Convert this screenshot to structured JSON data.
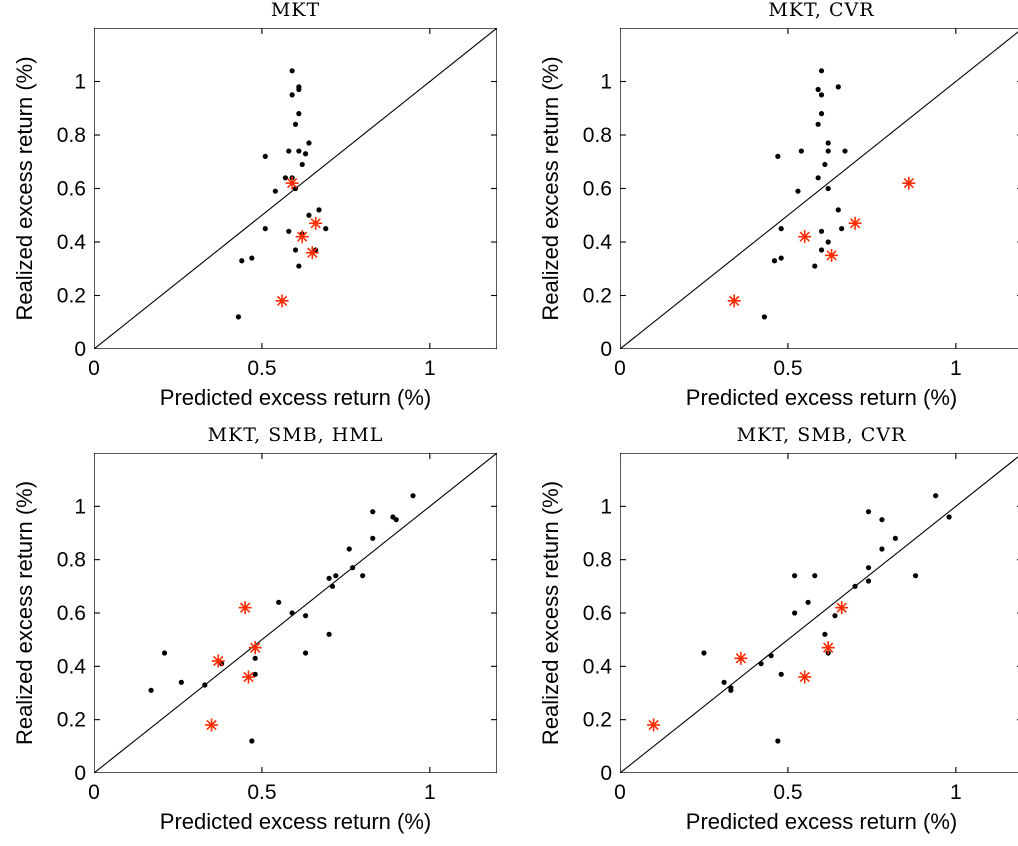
{
  "chart_data": [
    {
      "type": "scatter",
      "title": "MKT",
      "xlabel": "Predicted excess return (%)",
      "ylabel": "Realized excess return (%)",
      "xlim": [
        0,
        1.2
      ],
      "ylim": [
        0,
        1.2
      ],
      "x_ticks": [
        {
          "v": 0,
          "label": "0"
        },
        {
          "v": 0.5,
          "label": "0.5"
        },
        {
          "v": 1,
          "label": "1"
        }
      ],
      "y_ticks": [
        {
          "v": 0,
          "label": "0"
        },
        {
          "v": 0.2,
          "label": "0.2"
        },
        {
          "v": 0.4,
          "label": "0.4"
        },
        {
          "v": 0.6,
          "label": "0.6"
        },
        {
          "v": 0.8,
          "label": "0.8"
        },
        {
          "v": 1,
          "label": "1"
        }
      ],
      "reference_line": "45-degree",
      "series": [
        {
          "color": "#000000",
          "marker": "dot",
          "points": [
            [
              0.59,
              1.04
            ],
            [
              0.61,
              0.98
            ],
            [
              0.61,
              0.97
            ],
            [
              0.59,
              0.95
            ],
            [
              0.61,
              0.88
            ],
            [
              0.6,
              0.84
            ],
            [
              0.64,
              0.77
            ],
            [
              0.58,
              0.74
            ],
            [
              0.61,
              0.74
            ],
            [
              0.63,
              0.73
            ],
            [
              0.51,
              0.72
            ],
            [
              0.62,
              0.69
            ],
            [
              0.59,
              0.64
            ],
            [
              0.57,
              0.64
            ],
            [
              0.6,
              0.6
            ],
            [
              0.54,
              0.59
            ],
            [
              0.67,
              0.52
            ],
            [
              0.64,
              0.5
            ],
            [
              0.69,
              0.45
            ],
            [
              0.51,
              0.45
            ],
            [
              0.58,
              0.44
            ],
            [
              0.62,
              0.43
            ],
            [
              0.66,
              0.37
            ],
            [
              0.6,
              0.37
            ],
            [
              0.47,
              0.34
            ],
            [
              0.44,
              0.33
            ],
            [
              0.61,
              0.31
            ],
            [
              0.43,
              0.12
            ]
          ]
        },
        {
          "color": "#ff2a00",
          "marker": "asterisk",
          "points": [
            [
              0.59,
              0.62
            ],
            [
              0.66,
              0.47
            ],
            [
              0.62,
              0.42
            ],
            [
              0.65,
              0.36
            ],
            [
              0.56,
              0.18
            ]
          ]
        }
      ]
    },
    {
      "type": "scatter",
      "title": "MKT, CVR",
      "xlabel": "Predicted excess return (%)",
      "ylabel": "Realized excess return (%)",
      "xlim": [
        0,
        1.2
      ],
      "ylim": [
        0,
        1.2
      ],
      "x_ticks": [
        {
          "v": 0,
          "label": "0"
        },
        {
          "v": 0.5,
          "label": "0.5"
        },
        {
          "v": 1,
          "label": "1"
        }
      ],
      "y_ticks": [
        {
          "v": 0,
          "label": "0"
        },
        {
          "v": 0.2,
          "label": "0.2"
        },
        {
          "v": 0.4,
          "label": "0.4"
        },
        {
          "v": 0.6,
          "label": "0.6"
        },
        {
          "v": 0.8,
          "label": "0.8"
        },
        {
          "v": 1,
          "label": "1"
        }
      ],
      "reference_line": "45-degree",
      "series": [
        {
          "color": "#000000",
          "marker": "dot",
          "points": [
            [
              0.6,
              1.04
            ],
            [
              0.59,
              0.97
            ],
            [
              0.6,
              0.95
            ],
            [
              0.65,
              0.98
            ],
            [
              0.6,
              0.88
            ],
            [
              0.59,
              0.84
            ],
            [
              0.62,
              0.77
            ],
            [
              0.62,
              0.74
            ],
            [
              0.67,
              0.74
            ],
            [
              0.54,
              0.74
            ],
            [
              0.47,
              0.72
            ],
            [
              0.61,
              0.69
            ],
            [
              0.59,
              0.64
            ],
            [
              0.62,
              0.6
            ],
            [
              0.53,
              0.59
            ],
            [
              0.65,
              0.52
            ],
            [
              0.66,
              0.45
            ],
            [
              0.48,
              0.45
            ],
            [
              0.6,
              0.44
            ],
            [
              0.62,
              0.4
            ],
            [
              0.6,
              0.37
            ],
            [
              0.48,
              0.34
            ],
            [
              0.46,
              0.33
            ],
            [
              0.58,
              0.31
            ],
            [
              0.43,
              0.12
            ]
          ]
        },
        {
          "color": "#ff2a00",
          "marker": "asterisk",
          "points": [
            [
              0.86,
              0.62
            ],
            [
              0.7,
              0.47
            ],
            [
              0.55,
              0.42
            ],
            [
              0.63,
              0.35
            ],
            [
              0.34,
              0.18
            ]
          ]
        }
      ]
    },
    {
      "type": "scatter",
      "title": "MKT, SMB, HML",
      "xlabel": "Predicted excess return (%)",
      "ylabel": "Realized excess return (%)",
      "xlim": [
        0,
        1.2
      ],
      "ylim": [
        0,
        1.2
      ],
      "x_ticks": [
        {
          "v": 0,
          "label": "0"
        },
        {
          "v": 0.5,
          "label": "0.5"
        },
        {
          "v": 1,
          "label": "1"
        }
      ],
      "y_ticks": [
        {
          "v": 0,
          "label": "0"
        },
        {
          "v": 0.2,
          "label": "0.2"
        },
        {
          "v": 0.4,
          "label": "0.4"
        },
        {
          "v": 0.6,
          "label": "0.6"
        },
        {
          "v": 0.8,
          "label": "0.8"
        },
        {
          "v": 1,
          "label": "1"
        }
      ],
      "reference_line": "45-degree",
      "series": [
        {
          "color": "#000000",
          "marker": "dot",
          "points": [
            [
              0.95,
              1.04
            ],
            [
              0.83,
              0.98
            ],
            [
              0.89,
              0.96
            ],
            [
              0.9,
              0.95
            ],
            [
              0.83,
              0.88
            ],
            [
              0.76,
              0.84
            ],
            [
              0.77,
              0.77
            ],
            [
              0.72,
              0.74
            ],
            [
              0.8,
              0.74
            ],
            [
              0.7,
              0.73
            ],
            [
              0.71,
              0.7
            ],
            [
              0.55,
              0.64
            ],
            [
              0.59,
              0.6
            ],
            [
              0.63,
              0.59
            ],
            [
              0.7,
              0.52
            ],
            [
              0.63,
              0.45
            ],
            [
              0.21,
              0.45
            ],
            [
              0.48,
              0.43
            ],
            [
              0.38,
              0.41
            ],
            [
              0.48,
              0.37
            ],
            [
              0.26,
              0.34
            ],
            [
              0.33,
              0.33
            ],
            [
              0.17,
              0.31
            ],
            [
              0.47,
              0.12
            ]
          ]
        },
        {
          "color": "#ff2a00",
          "marker": "asterisk",
          "points": [
            [
              0.45,
              0.62
            ],
            [
              0.48,
              0.47
            ],
            [
              0.37,
              0.42
            ],
            [
              0.46,
              0.36
            ],
            [
              0.35,
              0.18
            ]
          ]
        }
      ]
    },
    {
      "type": "scatter",
      "title": "MKT, SMB, CVR",
      "xlabel": "Predicted excess return (%)",
      "ylabel": "Realized excess return (%)",
      "xlim": [
        0,
        1.2
      ],
      "ylim": [
        0,
        1.2
      ],
      "x_ticks": [
        {
          "v": 0,
          "label": "0"
        },
        {
          "v": 0.5,
          "label": "0.5"
        },
        {
          "v": 1,
          "label": "1"
        }
      ],
      "y_ticks": [
        {
          "v": 0,
          "label": "0"
        },
        {
          "v": 0.2,
          "label": "0.2"
        },
        {
          "v": 0.4,
          "label": "0.4"
        },
        {
          "v": 0.6,
          "label": "0.6"
        },
        {
          "v": 0.8,
          "label": "0.8"
        },
        {
          "v": 1,
          "label": "1"
        }
      ],
      "reference_line": "45-degree",
      "series": [
        {
          "color": "#000000",
          "marker": "dot",
          "points": [
            [
              0.94,
              1.04
            ],
            [
              0.74,
              0.98
            ],
            [
              0.98,
              0.96
            ],
            [
              0.78,
              0.95
            ],
            [
              0.82,
              0.88
            ],
            [
              0.78,
              0.84
            ],
            [
              0.74,
              0.77
            ],
            [
              0.58,
              0.74
            ],
            [
              0.52,
              0.74
            ],
            [
              0.74,
              0.72
            ],
            [
              0.88,
              0.74
            ],
            [
              0.7,
              0.7
            ],
            [
              0.56,
              0.64
            ],
            [
              0.52,
              0.6
            ],
            [
              0.64,
              0.59
            ],
            [
              0.61,
              0.52
            ],
            [
              0.25,
              0.45
            ],
            [
              0.62,
              0.45
            ],
            [
              0.42,
              0.41
            ],
            [
              0.45,
              0.44
            ],
            [
              0.48,
              0.37
            ],
            [
              0.31,
              0.34
            ],
            [
              0.33,
              0.32
            ],
            [
              0.33,
              0.31
            ],
            [
              0.47,
              0.12
            ]
          ]
        },
        {
          "color": "#ff2a00",
          "marker": "asterisk",
          "points": [
            [
              0.66,
              0.62
            ],
            [
              0.62,
              0.47
            ],
            [
              0.36,
              0.43
            ],
            [
              0.55,
              0.36
            ],
            [
              0.1,
              0.18
            ]
          ]
        }
      ]
    }
  ]
}
